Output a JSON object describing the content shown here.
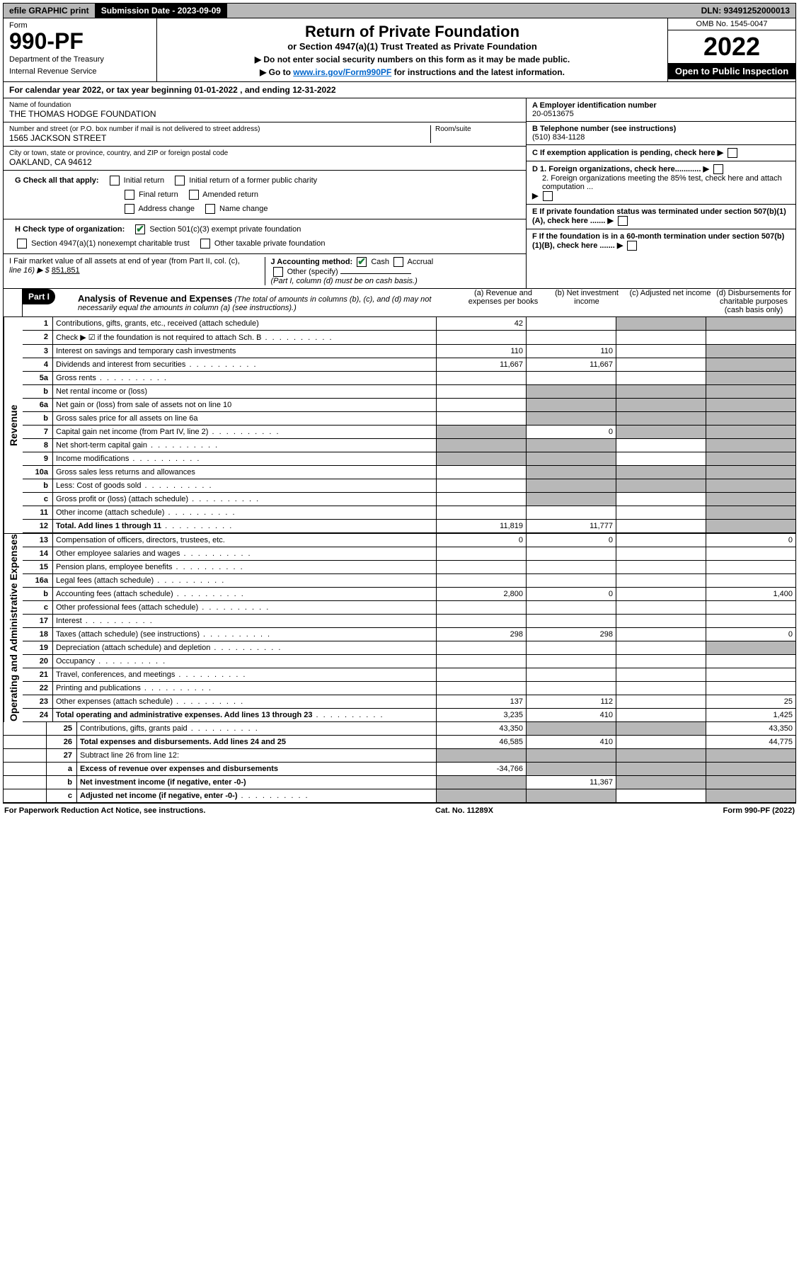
{
  "topbar": {
    "efile": "efile GRAPHIC print",
    "submission_label": "Submission Date - 2023-09-09",
    "dln": "DLN: 93491252000013"
  },
  "header": {
    "form_word": "Form",
    "form_no": "990-PF",
    "dept1": "Department of the Treasury",
    "dept2": "Internal Revenue Service",
    "title": "Return of Private Foundation",
    "subtitle": "or Section 4947(a)(1) Trust Treated as Private Foundation",
    "instr1": "▶ Do not enter social security numbers on this form as it may be made public.",
    "instr2_pre": "▶ Go to ",
    "instr2_link": "www.irs.gov/Form990PF",
    "instr2_post": " for instructions and the latest information.",
    "omb": "OMB No. 1545-0047",
    "year": "2022",
    "open": "Open to Public Inspection"
  },
  "cal_year": {
    "text_pre": "For calendar year 2022, or tax year beginning ",
    "begin": "01-01-2022",
    "text_mid": " , and ending ",
    "end": "12-31-2022"
  },
  "entity": {
    "name_label": "Name of foundation",
    "name": "THE THOMAS HODGE FOUNDATION",
    "addr_label": "Number and street (or P.O. box number if mail is not delivered to street address)",
    "addr": "1565 JACKSON STREET",
    "room_label": "Room/suite",
    "city_label": "City or town, state or province, country, and ZIP or foreign postal code",
    "city": "OAKLAND, CA  94612",
    "ein_label": "A Employer identification number",
    "ein": "20-0513675",
    "phone_label": "B Telephone number (see instructions)",
    "phone": "(510) 834-1128",
    "c_label": "C If exemption application is pending, check here",
    "d1_label": "D 1. Foreign organizations, check here............",
    "d2_label": "2. Foreign organizations meeting the 85% test, check here and attach computation ...",
    "e_label": "E If private foundation status was terminated under section 507(b)(1)(A), check here .......",
    "f_label": "F If the foundation is in a 60-month termination under section 507(b)(1)(B), check here ......."
  },
  "g": {
    "label": "G Check all that apply:",
    "opts": [
      "Initial return",
      "Final return",
      "Address change",
      "Initial return of a former public charity",
      "Amended return",
      "Name change"
    ]
  },
  "h": {
    "label": "H Check type of organization:",
    "opt1": "Section 501(c)(3) exempt private foundation",
    "opt2": "Section 4947(a)(1) nonexempt charitable trust",
    "opt3": "Other taxable private foundation"
  },
  "i": {
    "label": "I Fair market value of all assets at end of year (from Part II, col. (c),",
    "line": "line 16) ▶ $",
    "value": "851,851"
  },
  "j": {
    "label": "J Accounting method:",
    "cash": "Cash",
    "accrual": "Accrual",
    "other": "Other (specify)",
    "note": "(Part I, column (d) must be on cash basis.)"
  },
  "part1": {
    "badge": "Part I",
    "title": "Analysis of Revenue and Expenses",
    "note": "(The total of amounts in columns (b), (c), and (d) may not necessarily equal the amounts in column (a) (see instructions).)",
    "col_a": "(a) Revenue and expenses per books",
    "col_b": "(b) Net investment income",
    "col_c": "(c) Adjusted net income",
    "col_d": "(d) Disbursements for charitable purposes (cash basis only)"
  },
  "side_labels": {
    "rev": "Revenue",
    "exp": "Operating and Administrative Expenses"
  },
  "rows": [
    {
      "n": "1",
      "d": "Contributions, gifts, grants, etc., received (attach schedule)",
      "a": "42",
      "b": "",
      "c": "s",
      "ds": "s"
    },
    {
      "n": "2",
      "d": "Check ▶ ☑ if the foundation is not required to attach Sch. B",
      "dots": true,
      "a": "",
      "b": "",
      "c": "",
      "ds": ""
    },
    {
      "n": "3",
      "d": "Interest on savings and temporary cash investments",
      "a": "110",
      "b": "110",
      "c": "",
      "ds": "s"
    },
    {
      "n": "4",
      "d": "Dividends and interest from securities",
      "dots": true,
      "a": "11,667",
      "b": "11,667",
      "c": "",
      "ds": "s"
    },
    {
      "n": "5a",
      "d": "Gross rents",
      "dots": true,
      "a": "",
      "b": "",
      "c": "",
      "ds": "s"
    },
    {
      "n": "b",
      "d": "Net rental income or (loss)",
      "a": "",
      "b": "s",
      "c": "s",
      "ds": "s"
    },
    {
      "n": "6a",
      "d": "Net gain or (loss) from sale of assets not on line 10",
      "a": "",
      "b": "s",
      "c": "s",
      "ds": "s"
    },
    {
      "n": "b",
      "d": "Gross sales price for all assets on line 6a",
      "a": "",
      "b": "s",
      "c": "s",
      "ds": "s"
    },
    {
      "n": "7",
      "d": "Capital gain net income (from Part IV, line 2)",
      "dots": true,
      "a": "s",
      "b": "0",
      "c": "s",
      "ds": "s"
    },
    {
      "n": "8",
      "d": "Net short-term capital gain",
      "dots": true,
      "a": "s",
      "b": "s",
      "c": "",
      "ds": "s"
    },
    {
      "n": "9",
      "d": "Income modifications",
      "dots": true,
      "a": "s",
      "b": "s",
      "c": "",
      "ds": "s"
    },
    {
      "n": "10a",
      "d": "Gross sales less returns and allowances",
      "a": "",
      "b": "s",
      "c": "s",
      "ds": "s"
    },
    {
      "n": "b",
      "d": "Less: Cost of goods sold",
      "dots": true,
      "a": "",
      "b": "s",
      "c": "s",
      "ds": "s"
    },
    {
      "n": "c",
      "d": "Gross profit or (loss) (attach schedule)",
      "dots": true,
      "a": "",
      "b": "s",
      "c": "",
      "ds": "s"
    },
    {
      "n": "11",
      "d": "Other income (attach schedule)",
      "dots": true,
      "a": "",
      "b": "",
      "c": "",
      "ds": "s"
    },
    {
      "n": "12",
      "d": "Total. Add lines 1 through 11",
      "dots": true,
      "bold": true,
      "a": "11,819",
      "b": "11,777",
      "c": "",
      "ds": "s"
    },
    {
      "n": "13",
      "d": "Compensation of officers, directors, trustees, etc.",
      "a": "0",
      "b": "0",
      "c": "",
      "ds": "0"
    },
    {
      "n": "14",
      "d": "Other employee salaries and wages",
      "dots": true,
      "a": "",
      "b": "",
      "c": "",
      "ds": ""
    },
    {
      "n": "15",
      "d": "Pension plans, employee benefits",
      "dots": true,
      "a": "",
      "b": "",
      "c": "",
      "ds": ""
    },
    {
      "n": "16a",
      "d": "Legal fees (attach schedule)",
      "dots": true,
      "a": "",
      "b": "",
      "c": "",
      "ds": ""
    },
    {
      "n": "b",
      "d": "Accounting fees (attach schedule)",
      "dots": true,
      "a": "2,800",
      "b": "0",
      "c": "",
      "ds": "1,400"
    },
    {
      "n": "c",
      "d": "Other professional fees (attach schedule)",
      "dots": true,
      "a": "",
      "b": "",
      "c": "",
      "ds": ""
    },
    {
      "n": "17",
      "d": "Interest",
      "dots": true,
      "a": "",
      "b": "",
      "c": "",
      "ds": ""
    },
    {
      "n": "18",
      "d": "Taxes (attach schedule) (see instructions)",
      "dots": true,
      "a": "298",
      "b": "298",
      "c": "",
      "ds": "0"
    },
    {
      "n": "19",
      "d": "Depreciation (attach schedule) and depletion",
      "dots": true,
      "a": "",
      "b": "",
      "c": "",
      "ds": "s"
    },
    {
      "n": "20",
      "d": "Occupancy",
      "dots": true,
      "a": "",
      "b": "",
      "c": "",
      "ds": ""
    },
    {
      "n": "21",
      "d": "Travel, conferences, and meetings",
      "dots": true,
      "a": "",
      "b": "",
      "c": "",
      "ds": ""
    },
    {
      "n": "22",
      "d": "Printing and publications",
      "dots": true,
      "a": "",
      "b": "",
      "c": "",
      "ds": ""
    },
    {
      "n": "23",
      "d": "Other expenses (attach schedule)",
      "dots": true,
      "a": "137",
      "b": "112",
      "c": "",
      "ds": "25"
    },
    {
      "n": "24",
      "d": "Total operating and administrative expenses. Add lines 13 through 23",
      "dots": true,
      "bold": true,
      "a": "3,235",
      "b": "410",
      "c": "",
      "ds": "1,425"
    },
    {
      "n": "25",
      "d": "Contributions, gifts, grants paid",
      "dots": true,
      "a": "43,350",
      "b": "s",
      "c": "s",
      "ds": "43,350"
    },
    {
      "n": "26",
      "d": "Total expenses and disbursements. Add lines 24 and 25",
      "bold": true,
      "a": "46,585",
      "b": "410",
      "c": "",
      "ds": "44,775"
    },
    {
      "n": "27",
      "d": "Subtract line 26 from line 12:",
      "a": "s",
      "b": "s",
      "c": "s",
      "ds": "s"
    },
    {
      "n": "a",
      "d": "Excess of revenue over expenses and disbursements",
      "bold": true,
      "a": "-34,766",
      "b": "s",
      "c": "s",
      "ds": "s"
    },
    {
      "n": "b",
      "d": "Net investment income (if negative, enter -0-)",
      "bold": true,
      "a": "s",
      "b": "11,367",
      "c": "s",
      "ds": "s"
    },
    {
      "n": "c",
      "d": "Adjusted net income (if negative, enter -0-)",
      "bold": true,
      "dots": true,
      "a": "s",
      "b": "s",
      "c": "",
      "ds": "s"
    }
  ],
  "footer": {
    "left": "For Paperwork Reduction Act Notice, see instructions.",
    "mid": "Cat. No. 11289X",
    "right": "Form 990-PF (2022)"
  }
}
